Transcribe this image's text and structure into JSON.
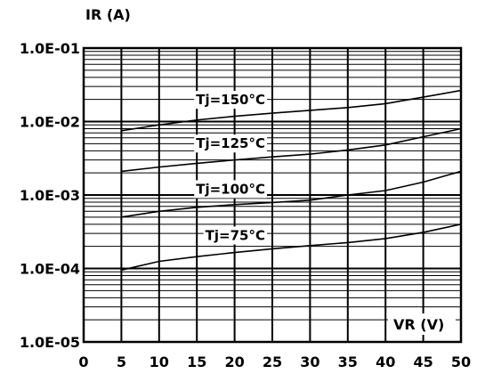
{
  "chart_data": {
    "type": "line",
    "title": "",
    "ylabel": "IR (A)",
    "xlabel": "VR (V)",
    "xlim": [
      0,
      50
    ],
    "ylim": [
      1e-05,
      0.1
    ],
    "y_scale": "log",
    "grid": true,
    "x_ticks": [
      0,
      5,
      10,
      15,
      20,
      25,
      30,
      35,
      40,
      45,
      50
    ],
    "x_tick_labels": [
      "0",
      "5",
      "10",
      "15",
      "20",
      "25",
      "30",
      "35",
      "40",
      "45",
      "50"
    ],
    "y_ticks": [
      1e-05,
      0.0001,
      0.001,
      0.01,
      0.1
    ],
    "y_tick_labels": [
      "1.0E-05",
      "1.0E-04",
      "1.0E-03",
      "1.0E-02",
      "1.0E-01"
    ],
    "series": [
      {
        "name": "Tj=150°C",
        "x": [
          5,
          10,
          15,
          20,
          25,
          30,
          35,
          40,
          45,
          50
        ],
        "y": [
          0.0075,
          0.009,
          0.0105,
          0.0118,
          0.013,
          0.0142,
          0.0155,
          0.0175,
          0.0215,
          0.0265
        ]
      },
      {
        "name": "Tj=125°C",
        "x": [
          5,
          10,
          15,
          20,
          25,
          30,
          35,
          40,
          45,
          50
        ],
        "y": [
          0.0021,
          0.0024,
          0.0027,
          0.003,
          0.0033,
          0.0036,
          0.0041,
          0.0048,
          0.0062,
          0.008
        ]
      },
      {
        "name": "Tj=100°C",
        "x": [
          5,
          10,
          15,
          20,
          25,
          30,
          35,
          40,
          45,
          50
        ],
        "y": [
          0.0005,
          0.0006,
          0.00068,
          0.00074,
          0.00079,
          0.00085,
          0.001,
          0.00115,
          0.0015,
          0.0021
        ]
      },
      {
        "name": "Tj=75°C",
        "x": [
          5,
          10,
          15,
          20,
          25,
          30,
          35,
          40,
          45,
          50
        ],
        "y": [
          9.5e-05,
          0.000125,
          0.000145,
          0.000165,
          0.000185,
          0.000205,
          0.000225,
          0.000255,
          0.00031,
          0.0004
        ]
      }
    ]
  }
}
